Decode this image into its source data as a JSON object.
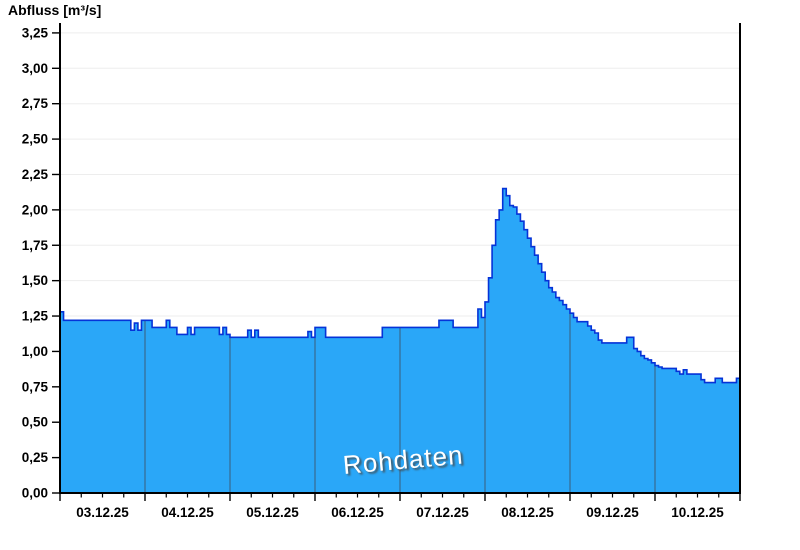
{
  "header": {
    "title": "Abfluss [m³/s]"
  },
  "watermark": {
    "text": "Rohdaten"
  },
  "colors": {
    "background": "#ffffff",
    "area_fill": "#2aa7f8",
    "area_stroke": "#0533d8",
    "grid_horizontal": "#ededed",
    "axis": "#000000",
    "day_separator": "#3d4a5a",
    "label_text": "#000000",
    "watermark_text": "#ffffff",
    "watermark_shadow": "#464646"
  },
  "chart_data": {
    "type": "area",
    "title": "Abfluss [m³/s]",
    "ylabel": "Abfluss [m³/s]",
    "unit": "m³/s",
    "decimal_separator": ",",
    "x_tick_labels": [
      "03.12.25",
      "04.12.25",
      "05.12.25",
      "06.12.25",
      "07.12.25",
      "08.12.25",
      "09.12.25",
      "10.12.25"
    ],
    "x_start": "03.12.25 00:00",
    "x_end": "11.12.25 00:00",
    "point_interval_hours": 1,
    "days_shown": 8,
    "minor_ticks_per_day": 3,
    "ylim": [
      0,
      3.32
    ],
    "y_tick_step": 0.25,
    "y_tick_max": 3.25,
    "grid": "horizontal gridlines only; vertical day separators visible inside filled area",
    "legend": "none",
    "annotation": "Rohdaten",
    "series": [
      {
        "name": "Abfluss Rohdaten",
        "values": [
          1.28,
          1.22,
          1.22,
          1.22,
          1.22,
          1.22,
          1.22,
          1.22,
          1.22,
          1.22,
          1.22,
          1.22,
          1.22,
          1.22,
          1.22,
          1.22,
          1.22,
          1.22,
          1.22,
          1.22,
          1.15,
          1.2,
          1.15,
          1.22,
          1.22,
          1.22,
          1.17,
          1.17,
          1.17,
          1.17,
          1.22,
          1.17,
          1.17,
          1.12,
          1.12,
          1.12,
          1.17,
          1.12,
          1.17,
          1.17,
          1.17,
          1.17,
          1.17,
          1.17,
          1.17,
          1.12,
          1.17,
          1.12,
          1.1,
          1.1,
          1.1,
          1.1,
          1.1,
          1.15,
          1.1,
          1.15,
          1.1,
          1.1,
          1.1,
          1.1,
          1.1,
          1.1,
          1.1,
          1.1,
          1.1,
          1.1,
          1.1,
          1.1,
          1.1,
          1.1,
          1.14,
          1.1,
          1.17,
          1.17,
          1.17,
          1.1,
          1.1,
          1.1,
          1.1,
          1.1,
          1.1,
          1.1,
          1.1,
          1.1,
          1.1,
          1.1,
          1.1,
          1.1,
          1.1,
          1.1,
          1.1,
          1.17,
          1.17,
          1.17,
          1.17,
          1.17,
          1.17,
          1.17,
          1.17,
          1.17,
          1.17,
          1.17,
          1.17,
          1.17,
          1.17,
          1.17,
          1.17,
          1.22,
          1.22,
          1.22,
          1.22,
          1.17,
          1.17,
          1.17,
          1.17,
          1.17,
          1.17,
          1.17,
          1.3,
          1.24,
          1.35,
          1.52,
          1.75,
          1.93,
          2.0,
          2.15,
          2.1,
          2.03,
          2.02,
          1.97,
          1.92,
          1.86,
          1.8,
          1.74,
          1.68,
          1.62,
          1.56,
          1.5,
          1.45,
          1.42,
          1.38,
          1.36,
          1.33,
          1.3,
          1.27,
          1.24,
          1.21,
          1.21,
          1.21,
          1.18,
          1.15,
          1.13,
          1.08,
          1.06,
          1.06,
          1.06,
          1.06,
          1.06,
          1.06,
          1.06,
          1.1,
          1.1,
          1.02,
          1.0,
          0.97,
          0.95,
          0.94,
          0.92,
          0.9,
          0.89,
          0.88,
          0.88,
          0.88,
          0.88,
          0.86,
          0.84,
          0.87,
          0.84,
          0.84,
          0.84,
          0.84,
          0.8,
          0.78,
          0.78,
          0.78,
          0.81,
          0.81,
          0.78,
          0.78,
          0.78,
          0.78,
          0.81,
          0.81
        ]
      }
    ]
  }
}
